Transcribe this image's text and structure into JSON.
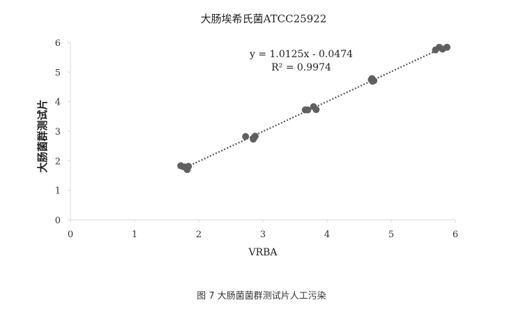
{
  "chart_data": {
    "type": "scatter",
    "title": "大肠埃希氏菌ATCC25922",
    "xlabel": "VRBA",
    "ylabel": "大肠菌群测试片",
    "xlim": [
      0,
      6
    ],
    "ylim": [
      0,
      6
    ],
    "xticks": [
      0,
      1,
      2,
      3,
      4,
      5,
      6
    ],
    "yticks": [
      0,
      1,
      2,
      3,
      4,
      5,
      6
    ],
    "grid": false,
    "legend": "none",
    "point_color": "#606060",
    "trendline": {
      "style": "dotted",
      "slope": 1.0125,
      "intercept": -0.0474,
      "x_range": [
        1.73,
        5.88
      ],
      "equation_label": "y = 1.0125x - 0.0474",
      "r2_label": "R² = 0.9974"
    },
    "points": [
      {
        "x": 1.72,
        "y": 1.83
      },
      {
        "x": 1.78,
        "y": 1.79
      },
      {
        "x": 1.82,
        "y": 1.7
      },
      {
        "x": 1.84,
        "y": 1.81
      },
      {
        "x": 2.73,
        "y": 2.82
      },
      {
        "x": 2.85,
        "y": 2.73
      },
      {
        "x": 2.88,
        "y": 2.83
      },
      {
        "x": 2.86,
        "y": 2.78
      },
      {
        "x": 3.66,
        "y": 3.72
      },
      {
        "x": 3.7,
        "y": 3.72
      },
      {
        "x": 3.79,
        "y": 3.83
      },
      {
        "x": 3.83,
        "y": 3.73
      },
      {
        "x": 4.69,
        "y": 4.74
      },
      {
        "x": 4.71,
        "y": 4.69
      },
      {
        "x": 4.73,
        "y": 4.71
      },
      {
        "x": 4.7,
        "y": 4.78
      },
      {
        "x": 5.69,
        "y": 5.75
      },
      {
        "x": 5.75,
        "y": 5.84
      },
      {
        "x": 5.8,
        "y": 5.78
      },
      {
        "x": 5.87,
        "y": 5.84
      }
    ]
  },
  "caption": "图 7  大肠菌菌群测试片人工污染"
}
